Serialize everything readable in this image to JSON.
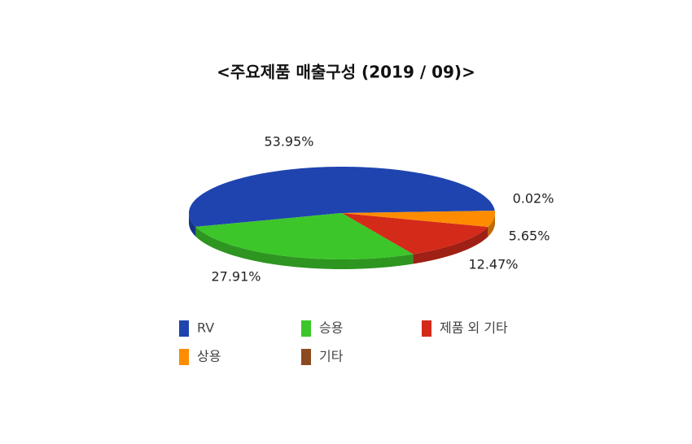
{
  "chart_data": {
    "type": "pie",
    "title": "<주요제품 매출구성 (2019 / 09)>",
    "categories": [
      "RV",
      "승용",
      "제품 외 기타",
      "상용",
      "기타"
    ],
    "values": [
      53.95,
      27.91,
      12.47,
      5.65,
      0.02
    ],
    "value_labels": [
      "53.95%",
      "27.91%",
      "12.47%",
      "5.65%",
      "0.02%"
    ],
    "colors": [
      "#1f44b0",
      "#3cc62a",
      "#d42a1a",
      "#ff8c00",
      "#8b4a1f"
    ]
  }
}
